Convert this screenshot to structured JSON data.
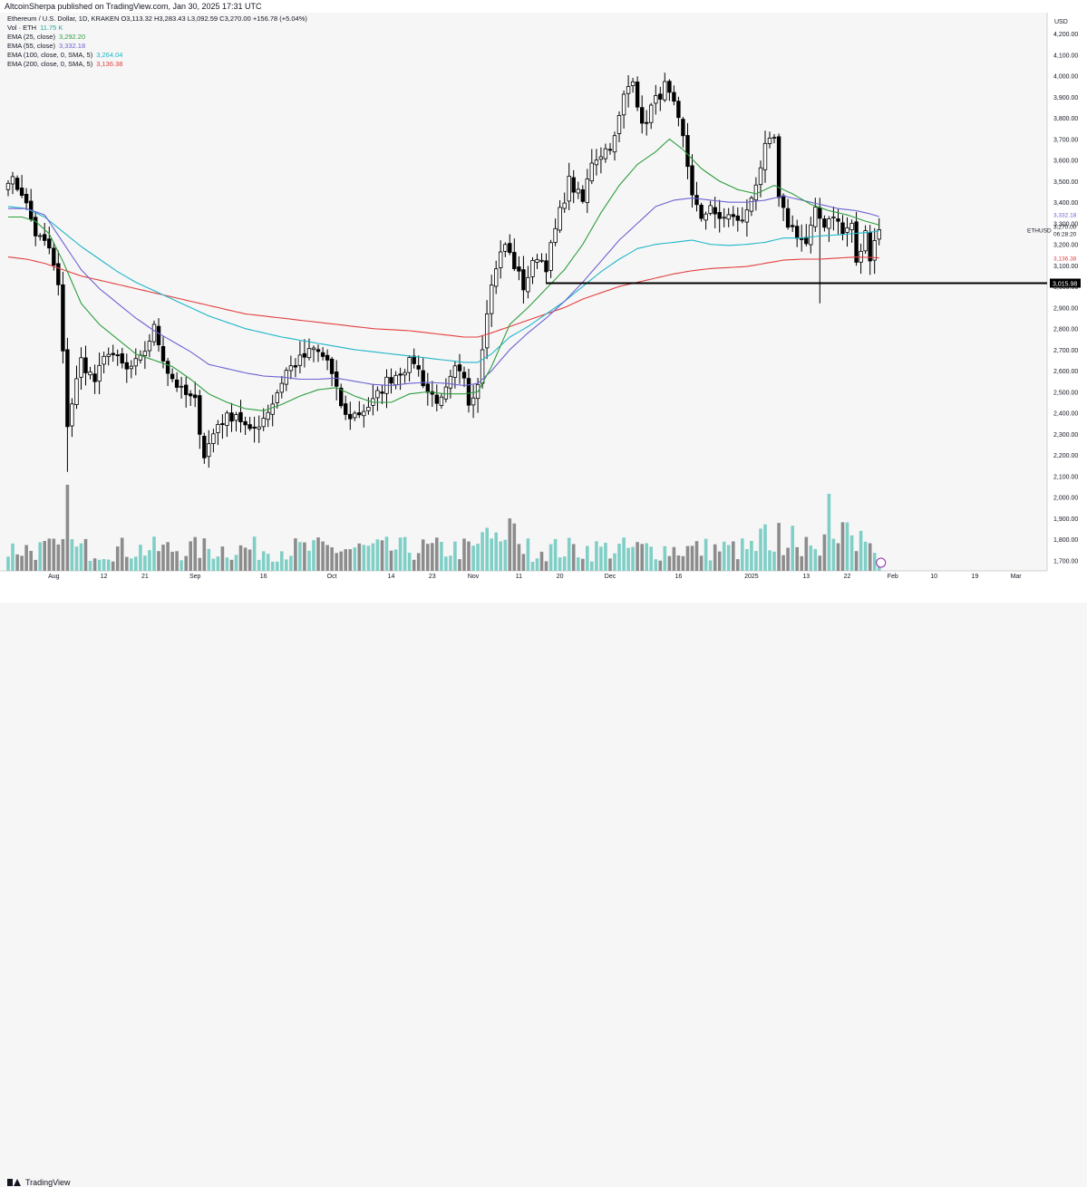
{
  "publish_line": "AltcoinSherpa published on TradingView.com, Jan 30, 2025 17:31 UTC",
  "brand": "TradingView",
  "legend": {
    "symbol_line": "Ethereum / U.S. Dollar, 1D, KRAKEN  O3,113.32  H3,283.43  L3,092.59  C3,270.00  +156.78 (+5.04%)",
    "vol_label": "Vol · ETH",
    "vol_value": "11.75 K",
    "ema25_label": "EMA (25, close)",
    "ema25_value": "3,292.20",
    "ema55_label": "EMA (55, close)",
    "ema55_value": "3,332.18",
    "ema100_label": "EMA (100, close, 0, SMA, 5)",
    "ema100_value": "3,264.04",
    "ema200_label": "EMA (200, close, 0, SMA, 5)",
    "ema200_value": "3,136.38"
  },
  "colors": {
    "up": "#ffffff",
    "down": "#000000",
    "vol_up": "#7fcfc6",
    "vol_down": "#8c8c8c",
    "ema25": "#2e9e3e",
    "ema55": "#6b62d1",
    "ema100": "#1fb6c9",
    "ema200": "#e33e3e",
    "support": "#000000"
  },
  "chart_data": {
    "type": "candlestick",
    "currency": "USD",
    "ylim": [
      1650,
      4300
    ],
    "y_ticks": [
      "4,200.00",
      "4,100.00",
      "4,000.00",
      "3,900.00",
      "3,800.00",
      "3,700.00",
      "3,600.00",
      "3,500.00",
      "3,400.00",
      "3,300.00",
      "3,200.00",
      "3,100.00",
      "3,000.00",
      "2,900.00",
      "2,800.00",
      "2,700.00",
      "2,600.00",
      "2,500.00",
      "2,400.00",
      "2,300.00",
      "2,200.00",
      "2,100.00",
      "2,000.00",
      "1,900.00",
      "1,800.00",
      "1,700.00"
    ],
    "x_ticks": [
      {
        "label": "Aug",
        "day": 10
      },
      {
        "label": "12",
        "day": 21
      },
      {
        "label": "21",
        "day": 30
      },
      {
        "label": "Sep",
        "day": 41
      },
      {
        "label": "16",
        "day": 56
      },
      {
        "label": "Oct",
        "day": 71
      },
      {
        "label": "14",
        "day": 84
      },
      {
        "label": "23",
        "day": 93
      },
      {
        "label": "Nov",
        "day": 102
      },
      {
        "label": "11",
        "day": 112
      },
      {
        "label": "20",
        "day": 121
      },
      {
        "label": "Dec",
        "day": 132
      },
      {
        "label": "16",
        "day": 147
      },
      {
        "label": "2025",
        "day": 163
      },
      {
        "label": "13",
        "day": 175
      },
      {
        "label": "22",
        "day": 184
      },
      {
        "label": "Feb",
        "day": 194
      },
      {
        "label": "10",
        "day": 203
      },
      {
        "label": "19",
        "day": 212
      },
      {
        "label": "Mar",
        "day": 221
      }
    ],
    "symbol_tag": "ETHUSD",
    "last_price": "3,270.00",
    "countdown": "06:28:20",
    "support_level": 3015.98,
    "support_label": "3,015.98",
    "support_start_day": 118,
    "ema25_last": "3,292.20",
    "ema55_last": "3,332.18",
    "ema100_last": "3,264.04",
    "ema200_last": "3,136.38",
    "anchors": {
      "close": [
        [
          0,
          3520
        ],
        [
          3,
          3450
        ],
        [
          6,
          3250
        ],
        [
          9,
          3180
        ],
        [
          11,
          3000
        ],
        [
          13,
          2350
        ],
        [
          16,
          2650
        ],
        [
          19,
          2550
        ],
        [
          22,
          2700
        ],
        [
          26,
          2600
        ],
        [
          29,
          2650
        ],
        [
          32,
          2800
        ],
        [
          35,
          2600
        ],
        [
          38,
          2500
        ],
        [
          41,
          2450
        ],
        [
          43,
          2200
        ],
        [
          46,
          2350
        ],
        [
          50,
          2400
        ],
        [
          53,
          2300
        ],
        [
          56,
          2380
        ],
        [
          58,
          2450
        ],
        [
          61,
          2600
        ],
        [
          64,
          2650
        ],
        [
          67,
          2700
        ],
        [
          70,
          2650
        ],
        [
          72,
          2500
        ],
        [
          74,
          2380
        ],
        [
          77,
          2400
        ],
        [
          80,
          2450
        ],
        [
          83,
          2550
        ],
        [
          86,
          2600
        ],
        [
          89,
          2650
        ],
        [
          92,
          2500
        ],
        [
          95,
          2450
        ],
        [
          98,
          2600
        ],
        [
          100,
          2550
        ],
        [
          101,
          2450
        ],
        [
          103,
          2550
        ],
        [
          105,
          2900
        ],
        [
          107,
          3100
        ],
        [
          109,
          3200
        ],
        [
          111,
          3100
        ],
        [
          113,
          3000
        ],
        [
          116,
          3150
        ],
        [
          118,
          3100
        ],
        [
          121,
          3350
        ],
        [
          123,
          3500
        ],
        [
          126,
          3400
        ],
        [
          128,
          3600
        ],
        [
          131,
          3650
        ],
        [
          133,
          3700
        ],
        [
          135,
          3900
        ],
        [
          137,
          4000
        ],
        [
          139,
          3750
        ],
        [
          141,
          3850
        ],
        [
          144,
          3950
        ],
        [
          146,
          3850
        ],
        [
          148,
          3700
        ],
        [
          150,
          3450
        ],
        [
          152,
          3300
        ],
        [
          154,
          3400
        ],
        [
          156,
          3300
        ],
        [
          158,
          3350
        ],
        [
          160,
          3300
        ],
        [
          162,
          3350
        ],
        [
          164,
          3500
        ],
        [
          166,
          3650
        ],
        [
          168,
          3700
        ],
        [
          169,
          3400
        ],
        [
          171,
          3300
        ],
        [
          173,
          3250
        ],
        [
          175,
          3200
        ],
        [
          177,
          3350
        ],
        [
          179,
          3300
        ],
        [
          181,
          3350
        ],
        [
          183,
          3250
        ],
        [
          185,
          3300
        ],
        [
          186,
          3100
        ],
        [
          188,
          3250
        ],
        [
          189,
          3150
        ],
        [
          190,
          3230
        ],
        [
          191,
          3270
        ]
      ],
      "ema25": [
        [
          0,
          3330
        ],
        [
          3,
          3330
        ],
        [
          6,
          3310
        ],
        [
          9,
          3250
        ],
        [
          12,
          3120
        ],
        [
          16,
          2920
        ],
        [
          20,
          2820
        ],
        [
          24,
          2750
        ],
        [
          28,
          2680
        ],
        [
          32,
          2650
        ],
        [
          36,
          2620
        ],
        [
          40,
          2560
        ],
        [
          44,
          2490
        ],
        [
          48,
          2450
        ],
        [
          52,
          2420
        ],
        [
          56,
          2410
        ],
        [
          60,
          2440
        ],
        [
          64,
          2480
        ],
        [
          68,
          2510
        ],
        [
          72,
          2520
        ],
        [
          76,
          2480
        ],
        [
          80,
          2450
        ],
        [
          84,
          2450
        ],
        [
          88,
          2490
        ],
        [
          92,
          2500
        ],
        [
          96,
          2490
        ],
        [
          100,
          2490
        ],
        [
          103,
          2500
        ],
        [
          106,
          2620
        ],
        [
          110,
          2820
        ],
        [
          114,
          2900
        ],
        [
          118,
          2990
        ],
        [
          122,
          3080
        ],
        [
          126,
          3200
        ],
        [
          130,
          3350
        ],
        [
          134,
          3480
        ],
        [
          138,
          3580
        ],
        [
          142,
          3640
        ],
        [
          145,
          3700
        ],
        [
          148,
          3650
        ],
        [
          152,
          3560
        ],
        [
          156,
          3500
        ],
        [
          160,
          3460
        ],
        [
          164,
          3440
        ],
        [
          168,
          3480
        ],
        [
          172,
          3440
        ],
        [
          176,
          3390
        ],
        [
          180,
          3360
        ],
        [
          184,
          3340
        ],
        [
          188,
          3310
        ],
        [
          191,
          3292
        ]
      ],
      "ema55": [
        [
          0,
          3370
        ],
        [
          4,
          3370
        ],
        [
          8,
          3340
        ],
        [
          12,
          3210
        ],
        [
          16,
          3080
        ],
        [
          20,
          2990
        ],
        [
          24,
          2920
        ],
        [
          28,
          2850
        ],
        [
          32,
          2790
        ],
        [
          36,
          2740
        ],
        [
          40,
          2690
        ],
        [
          44,
          2630
        ],
        [
          48,
          2610
        ],
        [
          52,
          2590
        ],
        [
          56,
          2575
        ],
        [
          60,
          2570
        ],
        [
          64,
          2560
        ],
        [
          68,
          2560
        ],
        [
          72,
          2565
        ],
        [
          76,
          2550
        ],
        [
          80,
          2535
        ],
        [
          84,
          2530
        ],
        [
          88,
          2540
        ],
        [
          92,
          2545
        ],
        [
          96,
          2540
        ],
        [
          100,
          2530
        ],
        [
          103,
          2540
        ],
        [
          106,
          2600
        ],
        [
          110,
          2700
        ],
        [
          114,
          2780
        ],
        [
          118,
          2850
        ],
        [
          122,
          2930
        ],
        [
          126,
          3020
        ],
        [
          130,
          3120
        ],
        [
          134,
          3220
        ],
        [
          138,
          3300
        ],
        [
          142,
          3380
        ],
        [
          146,
          3410
        ],
        [
          150,
          3420
        ],
        [
          154,
          3410
        ],
        [
          158,
          3400
        ],
        [
          162,
          3400
        ],
        [
          166,
          3410
        ],
        [
          170,
          3430
        ],
        [
          174,
          3410
        ],
        [
          178,
          3390
        ],
        [
          182,
          3370
        ],
        [
          186,
          3360
        ],
        [
          189,
          3345
        ],
        [
          191,
          3332
        ]
      ],
      "ema100": [
        [
          0,
          3380
        ],
        [
          4,
          3370
        ],
        [
          8,
          3330
        ],
        [
          12,
          3260
        ],
        [
          16,
          3190
        ],
        [
          20,
          3130
        ],
        [
          24,
          3070
        ],
        [
          28,
          3020
        ],
        [
          32,
          2980
        ],
        [
          36,
          2940
        ],
        [
          40,
          2900
        ],
        [
          44,
          2860
        ],
        [
          48,
          2830
        ],
        [
          52,
          2800
        ],
        [
          56,
          2780
        ],
        [
          60,
          2760
        ],
        [
          64,
          2745
        ],
        [
          68,
          2730
        ],
        [
          72,
          2715
        ],
        [
          76,
          2700
        ],
        [
          80,
          2690
        ],
        [
          84,
          2680
        ],
        [
          88,
          2670
        ],
        [
          92,
          2660
        ],
        [
          96,
          2650
        ],
        [
          100,
          2640
        ],
        [
          103,
          2640
        ],
        [
          106,
          2680
        ],
        [
          110,
          2760
        ],
        [
          114,
          2810
        ],
        [
          118,
          2870
        ],
        [
          122,
          2930
        ],
        [
          126,
          3000
        ],
        [
          130,
          3070
        ],
        [
          134,
          3130
        ],
        [
          138,
          3180
        ],
        [
          142,
          3200
        ],
        [
          146,
          3210
        ],
        [
          150,
          3220
        ],
        [
          154,
          3200
        ],
        [
          158,
          3195
        ],
        [
          162,
          3200
        ],
        [
          166,
          3210
        ],
        [
          170,
          3230
        ],
        [
          174,
          3230
        ],
        [
          178,
          3240
        ],
        [
          182,
          3245
        ],
        [
          186,
          3252
        ],
        [
          189,
          3258
        ],
        [
          191,
          3264
        ]
      ],
      "ema200": [
        [
          0,
          3140
        ],
        [
          4,
          3130
        ],
        [
          8,
          3110
        ],
        [
          12,
          3080
        ],
        [
          16,
          3050
        ],
        [
          20,
          3030
        ],
        [
          24,
          3010
        ],
        [
          28,
          2990
        ],
        [
          32,
          2970
        ],
        [
          36,
          2950
        ],
        [
          40,
          2930
        ],
        [
          44,
          2910
        ],
        [
          48,
          2890
        ],
        [
          52,
          2870
        ],
        [
          56,
          2860
        ],
        [
          60,
          2850
        ],
        [
          64,
          2840
        ],
        [
          68,
          2830
        ],
        [
          72,
          2820
        ],
        [
          76,
          2810
        ],
        [
          80,
          2800
        ],
        [
          84,
          2795
        ],
        [
          88,
          2790
        ],
        [
          92,
          2780
        ],
        [
          96,
          2770
        ],
        [
          100,
          2760
        ],
        [
          103,
          2760
        ],
        [
          106,
          2780
        ],
        [
          110,
          2810
        ],
        [
          114,
          2840
        ],
        [
          118,
          2870
        ],
        [
          122,
          2900
        ],
        [
          126,
          2940
        ],
        [
          130,
          2970
        ],
        [
          134,
          3000
        ],
        [
          138,
          3020
        ],
        [
          142,
          3040
        ],
        [
          146,
          3060
        ],
        [
          150,
          3075
        ],
        [
          154,
          3085
        ],
        [
          158,
          3090
        ],
        [
          162,
          3095
        ],
        [
          166,
          3110
        ],
        [
          170,
          3125
        ],
        [
          174,
          3130
        ],
        [
          178,
          3130
        ],
        [
          182,
          3135
        ],
        [
          186,
          3140
        ],
        [
          189,
          3138
        ],
        [
          191,
          3136
        ]
      ]
    }
  }
}
